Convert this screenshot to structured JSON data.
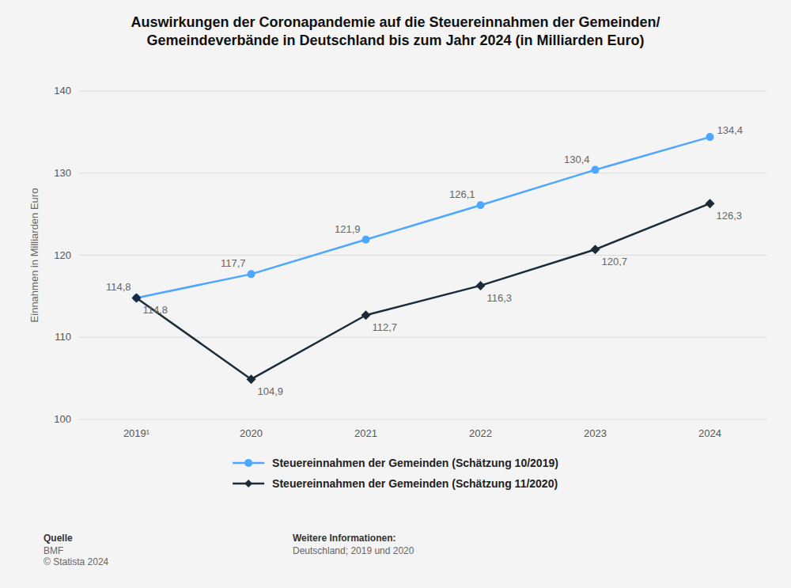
{
  "chart_data": {
    "type": "line",
    "title": "Auswirkungen der Coronapandemie auf die Steuereinnahmen der Gemeinden/\nGemeindeverbände in Deutschland bis zum Jahr 2024 (in Milliarden Euro)",
    "categories": [
      "2019¹",
      "2020",
      "2021",
      "2022",
      "2023",
      "2024"
    ],
    "y_label": "Einnahmen in Milliarden Euro",
    "series": [
      {
        "name": "Steuereinnahmen der Gemeinden (Schätzung 10/2019)",
        "color": "#4da6ff",
        "marker": "circle",
        "values": [
          114.8,
          117.7,
          121.9,
          126.1,
          130.4,
          134.4
        ],
        "value_labels": [
          "114,8",
          "117,7",
          "121,9",
          "126,1",
          "130,4",
          "134,4"
        ]
      },
      {
        "name": "Steuereinnahmen der Gemeinden (Schätzung 11/2020)",
        "color": "#1c2b3a",
        "marker": "diamond",
        "values": [
          114.8,
          104.9,
          112.7,
          116.3,
          120.7,
          126.3
        ],
        "value_labels": [
          "114,8",
          "104,9",
          "112,7",
          "116,3",
          "120,7",
          "126,3"
        ]
      }
    ],
    "ylim": [
      100,
      140
    ],
    "yticks": [
      100,
      110,
      120,
      130,
      140
    ],
    "grid": true,
    "legend": "bottom",
    "data_labels": true,
    "footer": [
      {
        "heading": "Quelle",
        "lines": [
          "BMF",
          "© Statista 2024"
        ]
      },
      {
        "heading": "Weitere Informationen:",
        "lines": [
          "Deutschland; 2019 und 2020"
        ]
      }
    ]
  }
}
